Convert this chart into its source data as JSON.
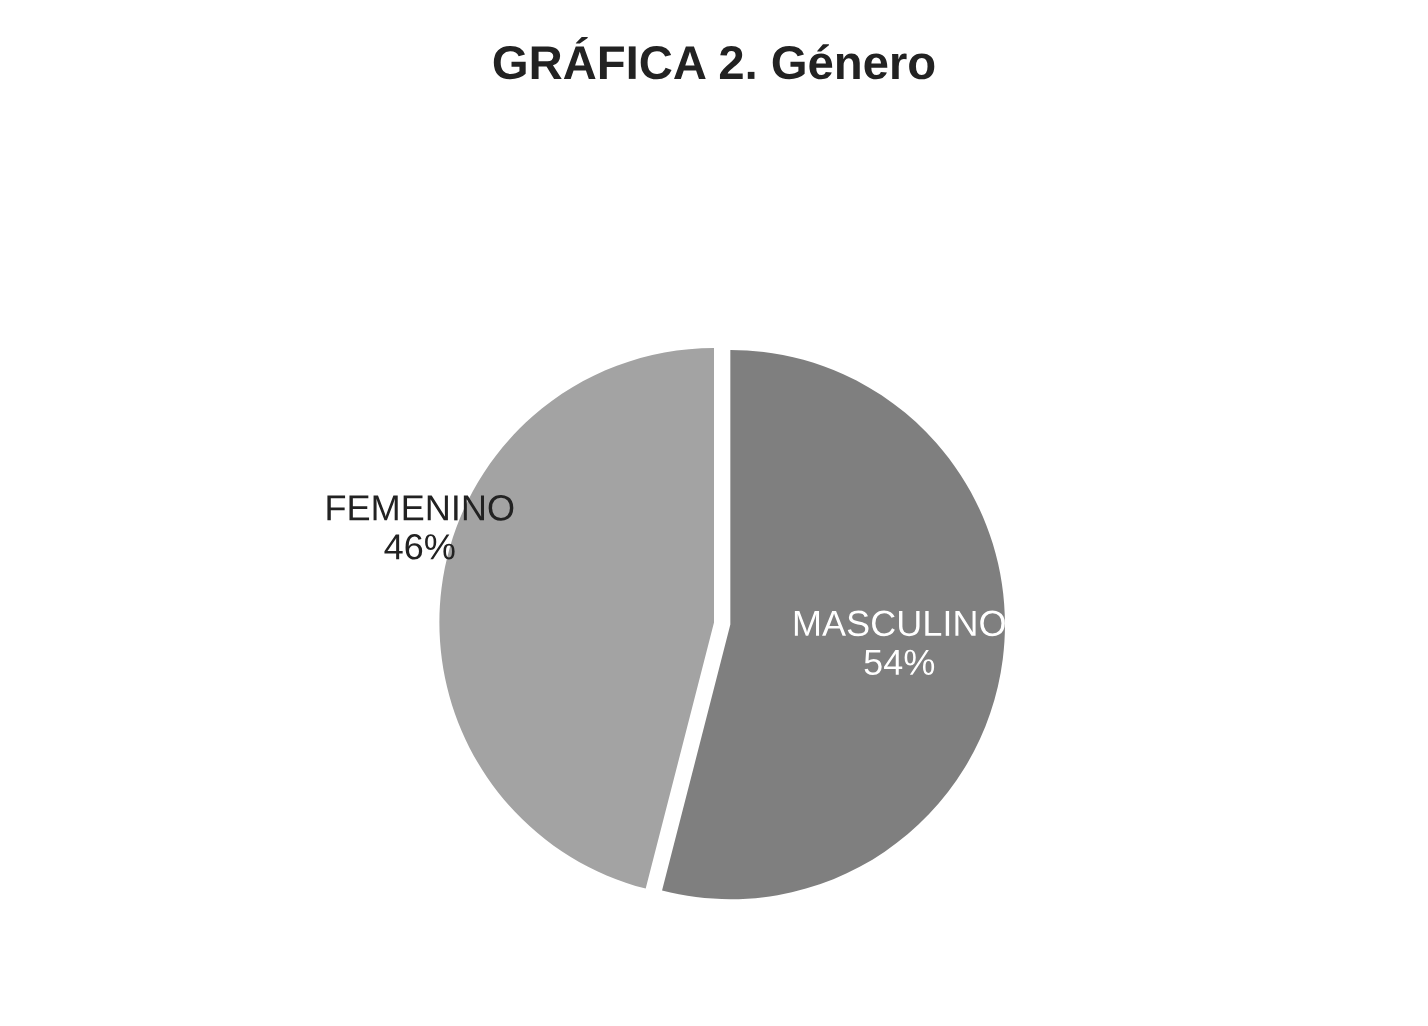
{
  "chart_data": {
    "type": "pie",
    "title": "GRÁFICA 2. Género",
    "categories": [
      "MASCULINO",
      "FEMENINO"
    ],
    "values": [
      54,
      46
    ],
    "value_labels": [
      "54%",
      "46%"
    ],
    "colors": [
      "#7f7f7f",
      "#a3a3a3"
    ],
    "legend": false
  }
}
